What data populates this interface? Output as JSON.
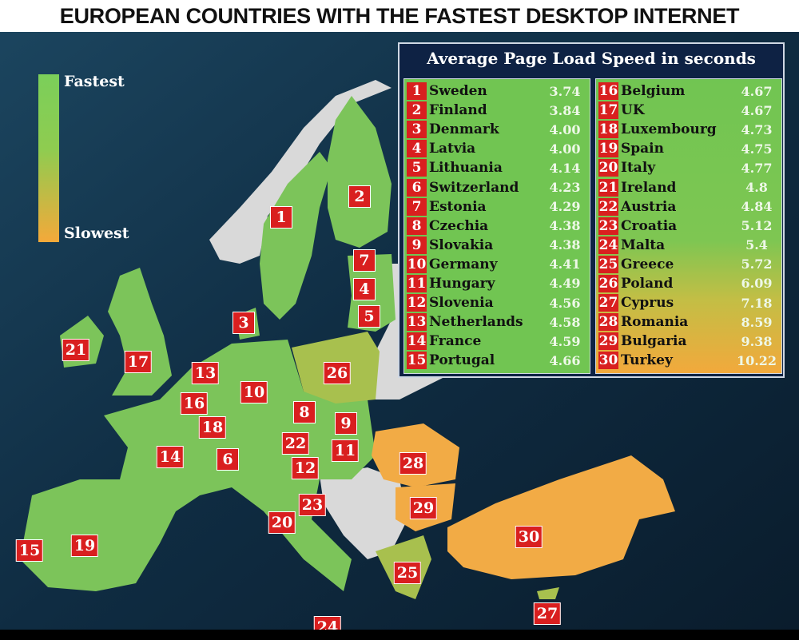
{
  "title": "EUROPEAN COUNTRIES WITH THE FASTEST DESKTOP INTERNET",
  "legend": {
    "top_label": "Fastest",
    "bottom_label": "Slowest",
    "colors": {
      "fastest": "#7bcf5a",
      "slowest": "#f4a93a"
    }
  },
  "table": {
    "title": "Average Page Load Speed in seconds",
    "unit": "seconds",
    "rows": [
      {
        "rank": "1",
        "country": "Sweden",
        "value": "3.74"
      },
      {
        "rank": "2",
        "country": "Finland",
        "value": "3.84"
      },
      {
        "rank": "3",
        "country": "Denmark",
        "value": "4.00"
      },
      {
        "rank": "4",
        "country": "Latvia",
        "value": "4.00"
      },
      {
        "rank": "5",
        "country": "Lithuania",
        "value": "4.14"
      },
      {
        "rank": "6",
        "country": "Switzerland",
        "value": "4.23"
      },
      {
        "rank": "7",
        "country": "Estonia",
        "value": "4.29"
      },
      {
        "rank": "8",
        "country": "Czechia",
        "value": "4.38"
      },
      {
        "rank": "9",
        "country": "Slovakia",
        "value": "4.38"
      },
      {
        "rank": "10",
        "country": "Germany",
        "value": "4.41"
      },
      {
        "rank": "11",
        "country": "Hungary",
        "value": "4.49"
      },
      {
        "rank": "12",
        "country": "Slovenia",
        "value": "4.56"
      },
      {
        "rank": "13",
        "country": "Netherlands",
        "value": "4.58"
      },
      {
        "rank": "14",
        "country": "France",
        "value": "4.59"
      },
      {
        "rank": "15",
        "country": "Portugal",
        "value": "4.66"
      },
      {
        "rank": "16",
        "country": "Belgium",
        "value": "4.67"
      },
      {
        "rank": "17",
        "country": "UK",
        "value": "4.67"
      },
      {
        "rank": "18",
        "country": "Luxembourg",
        "value": "4.73"
      },
      {
        "rank": "19",
        "country": "Spain",
        "value": "4.75"
      },
      {
        "rank": "20",
        "country": "Italy",
        "value": "4.77"
      },
      {
        "rank": "21",
        "country": "Ireland",
        "value": "4.8"
      },
      {
        "rank": "22",
        "country": "Austria",
        "value": "4.84"
      },
      {
        "rank": "23",
        "country": "Croatia",
        "value": "5.12"
      },
      {
        "rank": "24",
        "country": "Malta",
        "value": "5.4"
      },
      {
        "rank": "25",
        "country": "Greece",
        "value": "5.72"
      },
      {
        "rank": "26",
        "country": "Poland",
        "value": "6.09"
      },
      {
        "rank": "27",
        "country": "Cyprus",
        "value": "7.18"
      },
      {
        "rank": "28",
        "country": "Romania",
        "value": "8.59"
      },
      {
        "rank": "29",
        "country": "Bulgaria",
        "value": "9.38"
      },
      {
        "rank": "30",
        "country": "Turkey",
        "value": "10.22"
      }
    ]
  },
  "map_colors": {
    "fast": "#7cc45a",
    "mid": "#a8c04e",
    "slow": "#f2ab45",
    "no_data": "#d9d9d9"
  }
}
